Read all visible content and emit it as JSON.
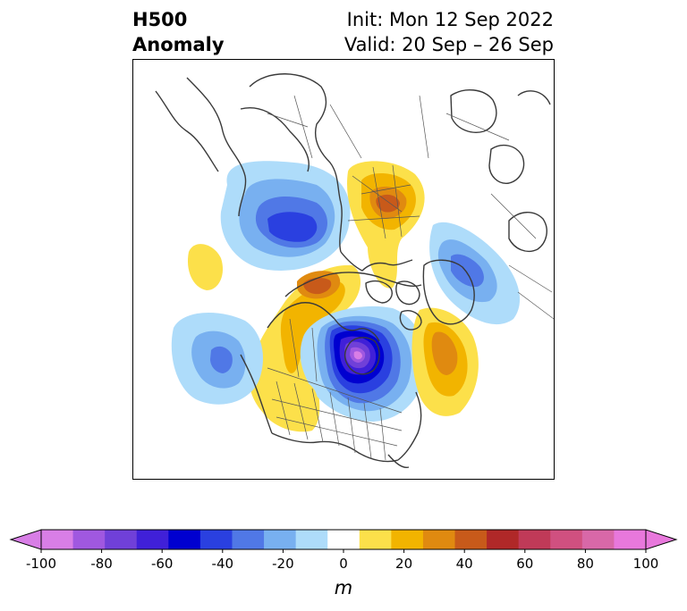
{
  "title": {
    "left_line1": "H500",
    "left_line2": "Anomaly",
    "right_line1": "Init: Mon 12 Sep 2022",
    "right_line2": "Valid: 20 Sep – 26 Sep"
  },
  "colorbar": {
    "unit": "m",
    "ticks": [
      "-100",
      "-80",
      "-60",
      "-40",
      "-20",
      "0",
      "20",
      "40",
      "60",
      "80",
      "100"
    ],
    "levels": [
      -100,
      -90,
      -80,
      -70,
      -60,
      -50,
      -40,
      -30,
      -20,
      -10,
      10,
      20,
      30,
      40,
      50,
      60,
      70,
      80,
      90,
      100
    ],
    "colors": [
      "#d87ee6",
      "#a058e0",
      "#7040d8",
      "#4020d8",
      "#0000d0",
      "#2a40e0",
      "#5078e6",
      "#78b0f0",
      "#aedcfa",
      "#ffffff",
      "#fce04a",
      "#f2b400",
      "#e08a10",
      "#c85a1a",
      "#b02828",
      "#c03a58",
      "#d05080",
      "#d868a8",
      "#e878dc"
    ],
    "extend_min_color": "#d87ee6",
    "extend_max_color": "#e878dc"
  },
  "map": {
    "projection": "north-polar stereographic",
    "region": "Northern Hemisphere, North America / North Pacific / Arctic"
  }
}
